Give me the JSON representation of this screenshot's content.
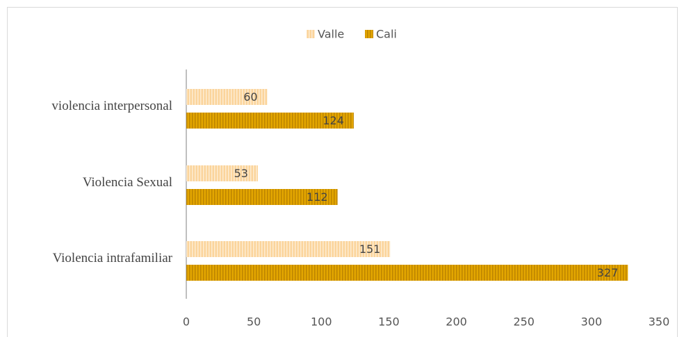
{
  "chart_data": {
    "type": "bar",
    "orientation": "horizontal",
    "categories": [
      "violencia interpersonal",
      "Violencia Sexual",
      "Violencia intrafamiliar"
    ],
    "series": [
      {
        "name": "Valle",
        "color": "#fbd49b",
        "values": [
          60,
          53,
          151
        ]
      },
      {
        "name": "Cali",
        "color": "#e3a600",
        "values": [
          124,
          112,
          327
        ]
      }
    ],
    "xlim": [
      0,
      350
    ],
    "xticks": [
      0,
      50,
      100,
      150,
      200,
      250,
      300,
      350
    ],
    "grid": false,
    "legend": "top"
  }
}
